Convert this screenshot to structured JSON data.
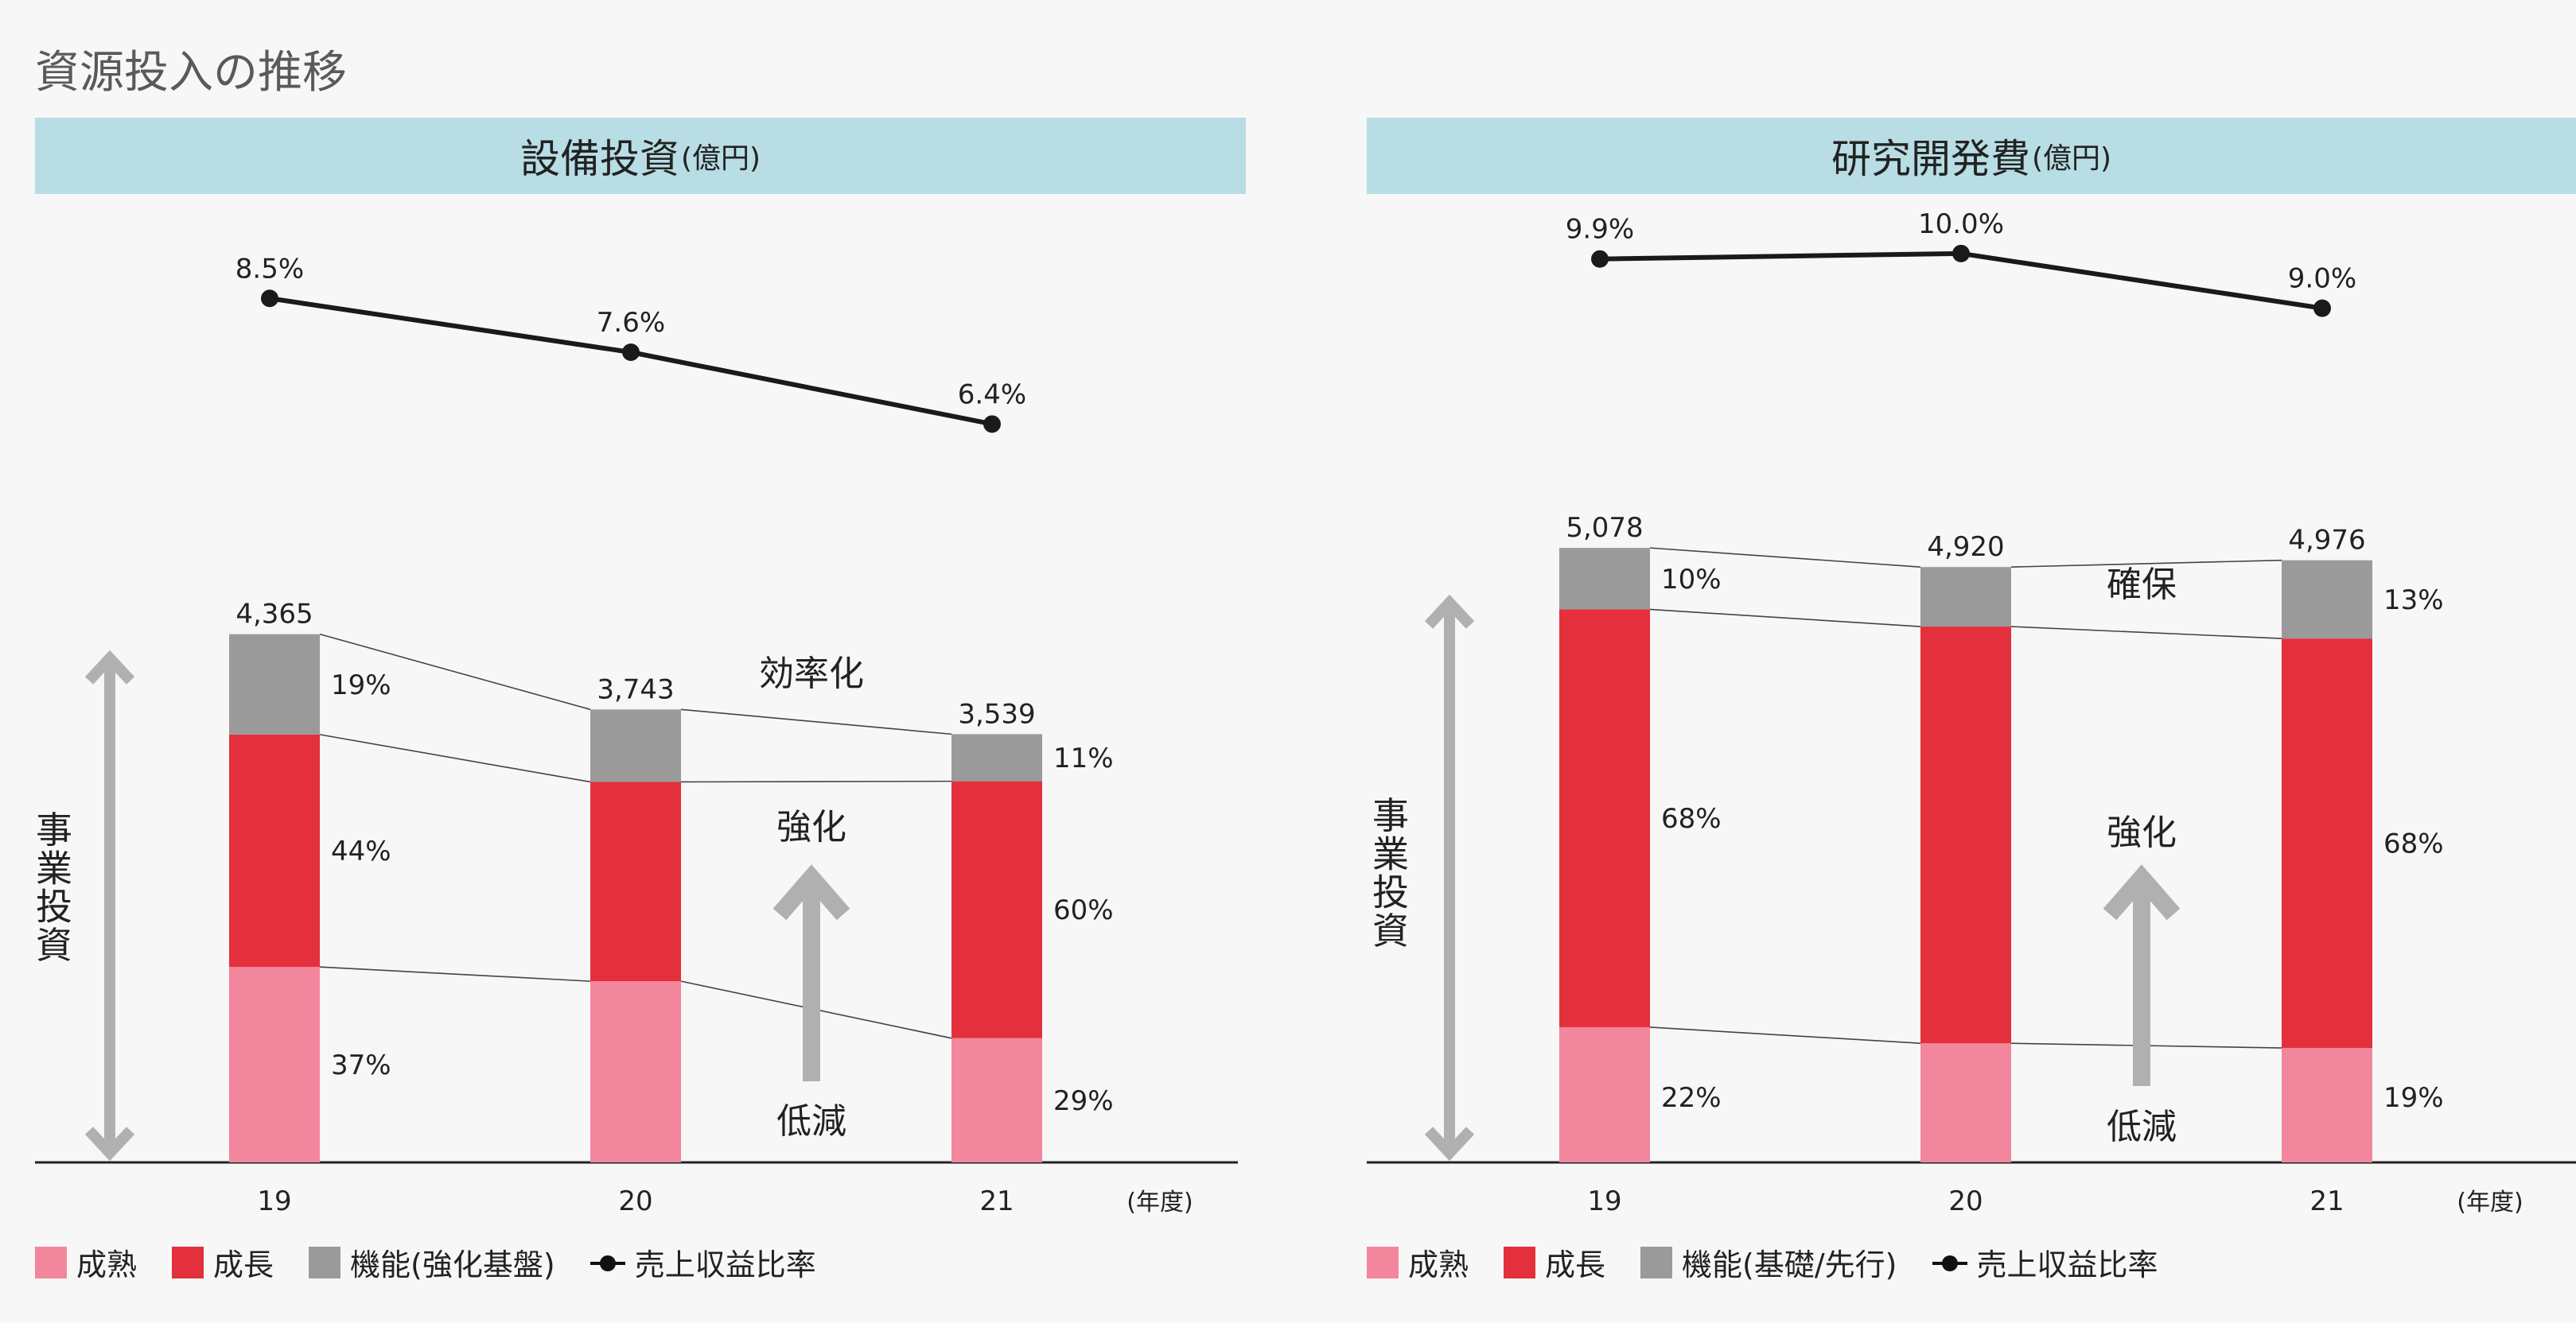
{
  "page": {
    "title": "資源投入の推移"
  },
  "colors": {
    "mature": "#f2869c",
    "growth": "#e3303c",
    "function": "#9a9a9a",
    "line": "#1a1a1a",
    "arrow": "#b0b0b0",
    "header_bg": "#b8dde4"
  },
  "common": {
    "year_unit": "(年度)",
    "vertical_label": "事業投資",
    "enhance_label": "強化",
    "reduce_label": "低減"
  },
  "chart_data": [
    {
      "type": "bar",
      "title": "設備投資",
      "unit": "(億円)",
      "categories": [
        "19",
        "20",
        "21"
      ],
      "totals": [
        4365,
        3743,
        3539
      ],
      "total_labels": [
        "4,365",
        "3,743",
        "3,539"
      ],
      "series": [
        {
          "name": "成熟",
          "values": [
            37,
            40,
            29
          ]
        },
        {
          "name": "成長",
          "values": [
            44,
            44,
            60
          ]
        },
        {
          "name": "機能(強化基盤)",
          "values": [
            19,
            16,
            11
          ]
        }
      ],
      "percent_labels": {
        "0": {
          "成熟": "37%",
          "成長": "44%",
          "機能(強化基盤)": "19%"
        },
        "2": {
          "成熟": "29%",
          "成長": "60%",
          "機能(強化基盤)": "11%"
        }
      },
      "ratio_series": {
        "name": "売上収益比率",
        "values": [
          8.5,
          7.6,
          6.4
        ],
        "labels": [
          "8.5%",
          "7.6%",
          "6.4%"
        ]
      },
      "gap_annotation": "効率化",
      "legend": [
        "成熟",
        "成長",
        "機能(強化基盤)",
        "売上収益比率"
      ]
    },
    {
      "type": "bar",
      "title": "研究開発費",
      "unit": "(億円)",
      "categories": [
        "19",
        "20",
        "21"
      ],
      "totals": [
        5078,
        4920,
        4976
      ],
      "total_labels": [
        "5,078",
        "4,920",
        "4,976"
      ],
      "series": [
        {
          "name": "成熟",
          "values": [
            22,
            20,
            19
          ]
        },
        {
          "name": "成長",
          "values": [
            68,
            70,
            68
          ]
        },
        {
          "name": "機能(基礎/先行)",
          "values": [
            10,
            10,
            13
          ]
        }
      ],
      "percent_labels": {
        "0": {
          "成熟": "22%",
          "成長": "68%",
          "機能(基礎/先行)": "10%"
        },
        "2": {
          "成熟": "19%",
          "成長": "68%",
          "機能(基礎/先行)": "13%"
        }
      },
      "ratio_series": {
        "name": "売上収益比率",
        "values": [
          9.9,
          10.0,
          9.0
        ],
        "labels": [
          "9.9%",
          "10.0%",
          "9.0%"
        ]
      },
      "gap_annotation": "確保",
      "legend": [
        "成熟",
        "成長",
        "機能(基礎/先行)",
        "売上収益比率"
      ]
    }
  ],
  "legend_left": {
    "mature": "成熟",
    "growth": "成長",
    "function": "機能(強化基盤)",
    "ratio": "売上収益比率"
  },
  "legend_right": {
    "mature": "成熟",
    "growth": "成長",
    "function": "機能(基礎/先行)",
    "ratio": "売上収益比率"
  }
}
